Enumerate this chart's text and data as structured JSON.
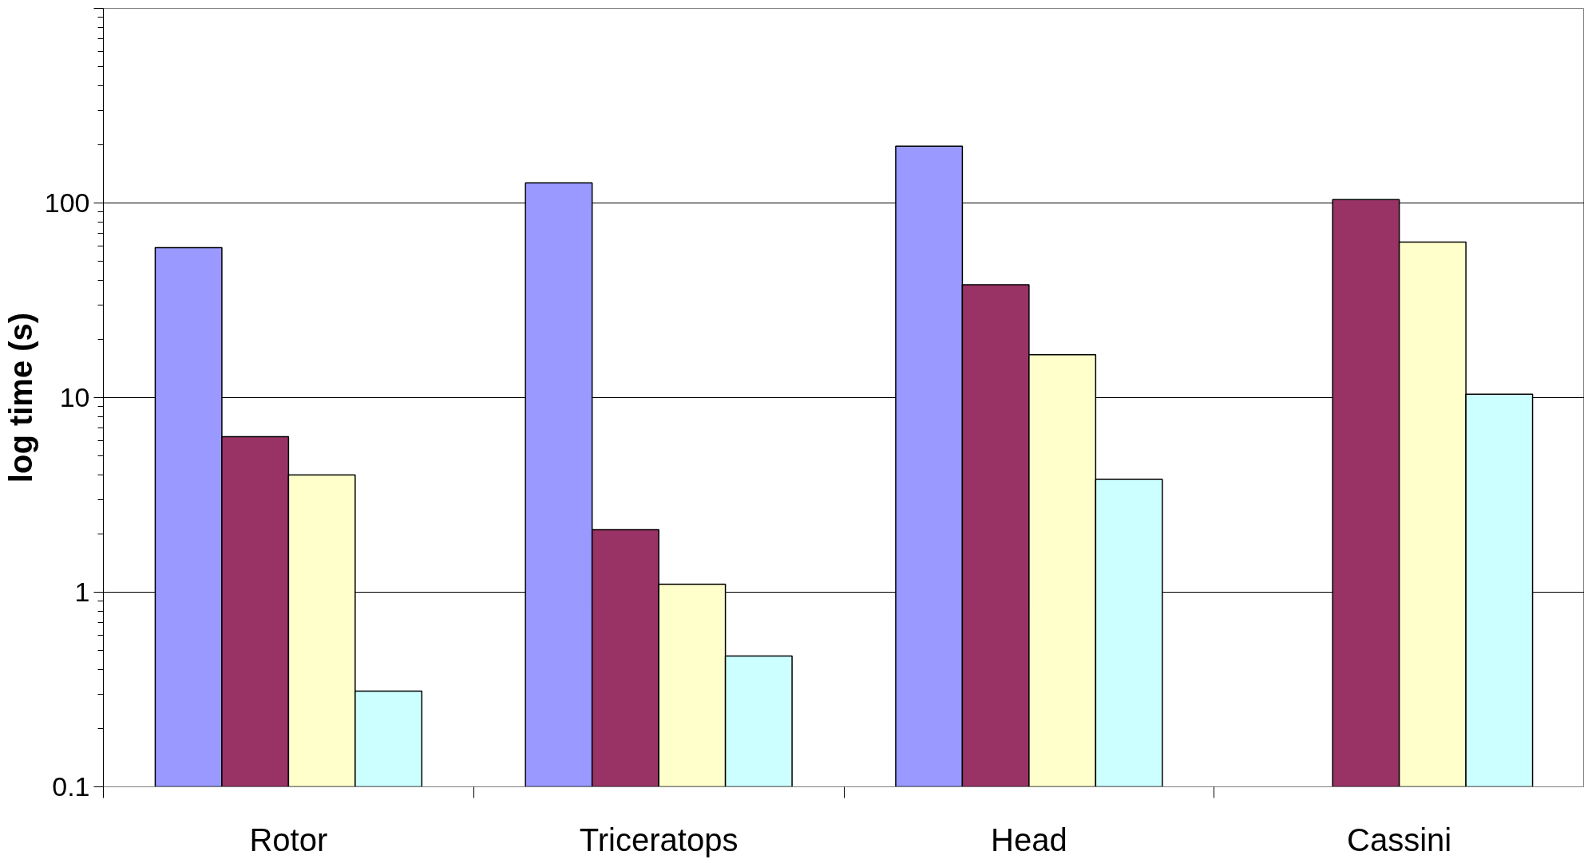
{
  "chart_data": {
    "type": "bar",
    "ylabel": "log time (s)",
    "categories": [
      "Rotor",
      "Triceratops",
      "Head",
      "Cassini"
    ],
    "series": [
      {
        "color": "#9999ff",
        "values": [
          59,
          127,
          196,
          null
        ]
      },
      {
        "color": "#993366",
        "values": [
          6.3,
          2.1,
          38,
          104
        ]
      },
      {
        "color": "#ffffcc",
        "values": [
          4.0,
          1.1,
          16.6,
          63
        ]
      },
      {
        "color": "#ccffff",
        "values": [
          0.31,
          0.47,
          3.8,
          10.4
        ]
      }
    ],
    "log": true,
    "ylim": [
      0.1,
      1000
    ],
    "yticks": [
      0.1,
      1,
      10,
      100,
      {
        "value": 1000,
        "label": null
      }
    ],
    "grid": "y"
  }
}
